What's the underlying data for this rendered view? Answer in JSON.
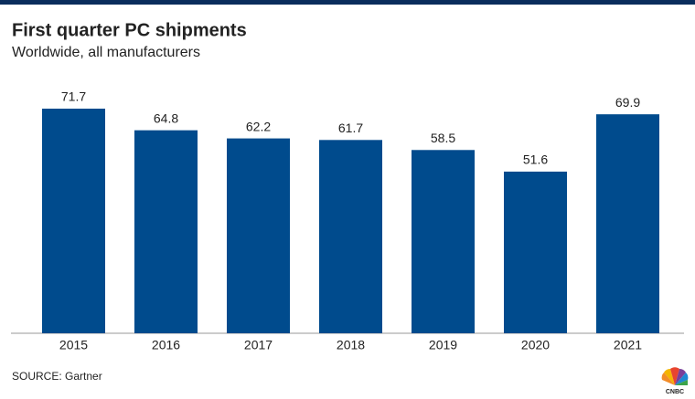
{
  "chart_data": {
    "type": "bar",
    "title": "First quarter PC shipments",
    "subtitle": "Worldwide, all manufacturers",
    "categories": [
      "2015",
      "2016",
      "2017",
      "2018",
      "2019",
      "2020",
      "2021"
    ],
    "values": [
      71.7,
      64.8,
      62.2,
      61.7,
      58.5,
      51.6,
      69.9
    ],
    "color": "#004b8d",
    "source": "SOURCE: Gartner",
    "logo": "CNBC"
  }
}
